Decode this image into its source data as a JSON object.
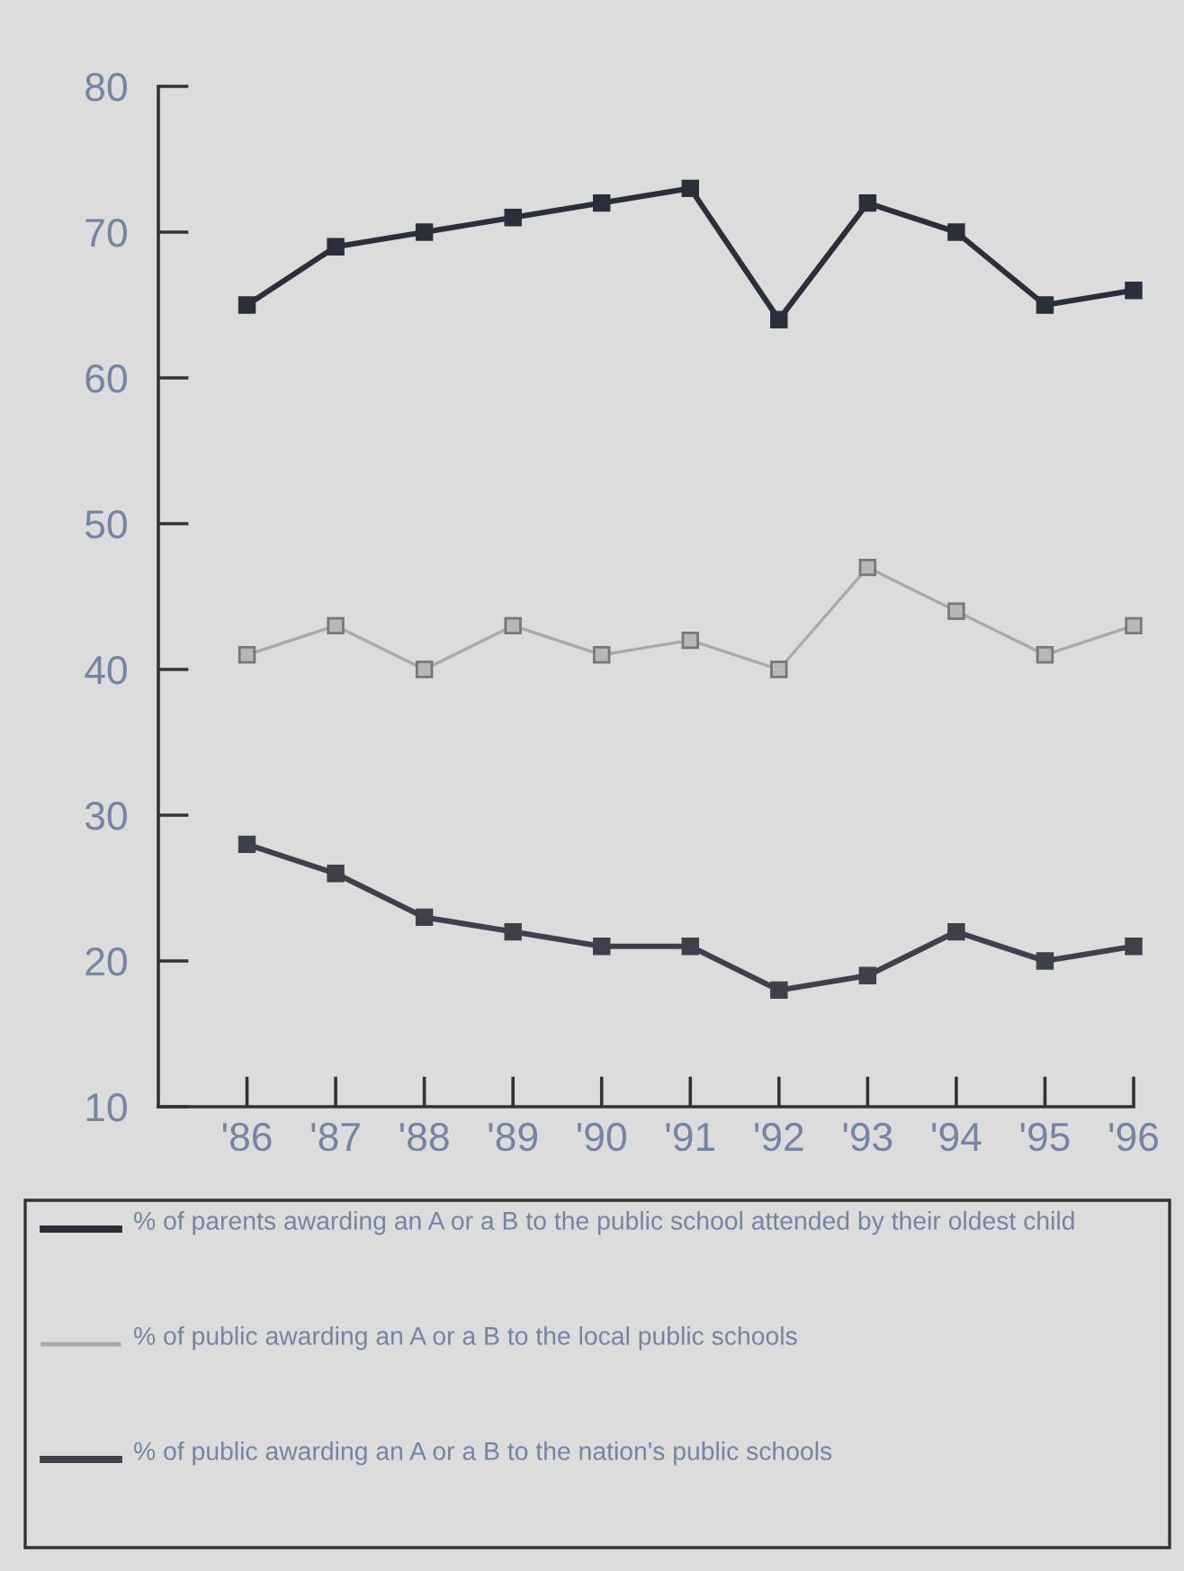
{
  "chart_data": {
    "type": "line",
    "categories": [
      "'86",
      "'87",
      "'88",
      "'89",
      "'90",
      "'91",
      "'92",
      "'93",
      "'94",
      "'95",
      "'96"
    ],
    "series": [
      {
        "name": "% of parents awarding an A or a B to the public school attended by their oldest child",
        "color": "#2b2f3a",
        "values": [
          65,
          69,
          70,
          71,
          72,
          73,
          64,
          72,
          70,
          65,
          66
        ]
      },
      {
        "name": "% of public awarding an A or a B to the local public schools",
        "color": "#a9a9a9",
        "values": [
          41,
          43,
          40,
          43,
          41,
          42,
          40,
          47,
          44,
          41,
          43
        ]
      },
      {
        "name": "% of public awarding an A or a B to the nation's public schools",
        "color": "#3e414b",
        "values": [
          28,
          26,
          23,
          22,
          21,
          21,
          18,
          19,
          22,
          20,
          21
        ]
      }
    ],
    "ylim": [
      10,
      80
    ],
    "yticks": [
      10,
      20,
      30,
      40,
      50,
      60,
      70,
      80
    ],
    "grid": false,
    "legend": "bottom",
    "marker": "square",
    "line_style": "solid"
  }
}
